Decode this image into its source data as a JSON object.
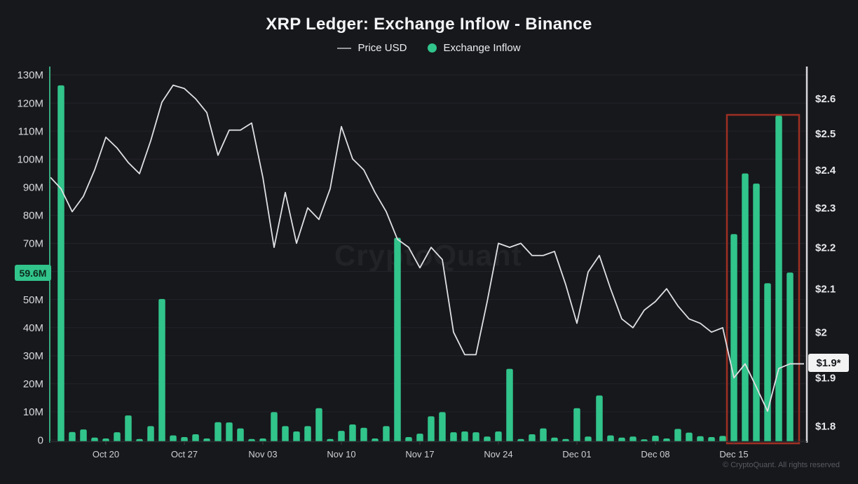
{
  "page": {
    "title": "XRP Ledger: Exchange Inflow - Binance"
  },
  "legend": {
    "price_label": "Price USD",
    "inflow_label": "Exchange Inflow"
  },
  "watermark": "CryptoQuant",
  "footer": {
    "copyright": "© CryptoQuant. All rights reserved"
  },
  "annotations": {
    "current_inflow_label": "59.6M",
    "current_price_label": "$1.9*"
  },
  "colors": {
    "background": "#17181c",
    "bar_green": "#31c48b",
    "price_line": "#dfe0e3",
    "left_axis_line": "#37a97e",
    "right_axis_line": "#d9dadd",
    "grid": "#222329",
    "red_box": "#9e2f23",
    "badge_inflow_text": "#0e2a1e",
    "tick_left": "#d8d9dc",
    "tick_right": "#e8e9ec",
    "tick_x": "#cfd0d3"
  },
  "chart_data": {
    "type": "combo",
    "title": "XRP Ledger: Exchange Inflow - Binance",
    "x": [
      "Oct 16",
      "Oct 17",
      "Oct 18",
      "Oct 19",
      "Oct 20",
      "Oct 21",
      "Oct 22",
      "Oct 23",
      "Oct 24",
      "Oct 25",
      "Oct 26",
      "Oct 27",
      "Oct 28",
      "Oct 29",
      "Oct 30",
      "Oct 31",
      "Nov 01",
      "Nov 02",
      "Nov 03",
      "Nov 04",
      "Nov 05",
      "Nov 06",
      "Nov 07",
      "Nov 08",
      "Nov 09",
      "Nov 10",
      "Nov 11",
      "Nov 12",
      "Nov 13",
      "Nov 14",
      "Nov 15",
      "Nov 16",
      "Nov 17",
      "Nov 18",
      "Nov 19",
      "Nov 20",
      "Nov 21",
      "Nov 22",
      "Nov 23",
      "Nov 24",
      "Nov 25",
      "Nov 26",
      "Nov 27",
      "Nov 28",
      "Nov 29",
      "Nov 30",
      "Dec 01",
      "Dec 02",
      "Dec 03",
      "Dec 04",
      "Dec 05",
      "Dec 06",
      "Dec 07",
      "Dec 08",
      "Dec 09",
      "Dec 10",
      "Dec 11",
      "Dec 12",
      "Dec 13",
      "Dec 14",
      "Dec 15",
      "Dec 16",
      "Dec 17",
      "Dec 18",
      "Dec 19",
      "Dec 20"
    ],
    "series": [
      {
        "name": "Exchange Inflow",
        "type": "bar",
        "axis": "left",
        "unit": "M",
        "values": [
          126.3,
          2.8,
          3.7,
          0.8,
          0.5,
          2.7,
          8.7,
          0.3,
          4.9,
          50.2,
          1.6,
          1.0,
          2.0,
          0.5,
          6.3,
          6.2,
          4.1,
          0.3,
          0.5,
          9.9,
          4.9,
          3.0,
          4.9,
          11.3,
          0.3,
          3.2,
          5.5,
          4.3,
          0.5,
          4.9,
          72.0,
          1.0,
          2.2,
          8.4,
          9.9,
          2.7,
          3.0,
          2.7,
          1.2,
          3.0,
          25.3,
          0.3,
          2.0,
          4.1,
          0.8,
          0.3,
          11.3,
          1.2,
          15.8,
          1.6,
          0.8,
          1.2,
          0.2,
          1.5,
          0.5,
          3.9,
          2.6,
          1.3,
          1.0,
          1.4,
          73.3,
          94.9,
          91.3,
          55.8,
          115.5,
          59.6
        ]
      },
      {
        "name": "Price USD",
        "type": "line",
        "axis": "right",
        "unit": "$",
        "values": [
          2.35,
          2.29,
          2.33,
          2.4,
          2.49,
          2.46,
          2.42,
          2.39,
          2.48,
          2.59,
          2.64,
          2.63,
          2.6,
          2.56,
          2.44,
          2.51,
          2.51,
          2.53,
          2.38,
          2.2,
          2.34,
          2.21,
          2.3,
          2.27,
          2.35,
          2.52,
          2.43,
          2.4,
          2.34,
          2.29,
          2.22,
          2.2,
          2.15,
          2.2,
          2.17,
          2.0,
          1.95,
          1.95,
          2.07,
          2.21,
          2.2,
          2.21,
          2.18,
          2.18,
          2.19,
          2.11,
          2.02,
          2.14,
          2.18,
          2.1,
          2.03,
          2.01,
          2.05,
          2.07,
          2.1,
          2.06,
          2.03,
          2.02,
          2.0,
          2.01,
          1.9,
          1.93,
          1.88,
          1.83,
          1.92,
          1.93
        ]
      }
    ],
    "edge_prices": {
      "start": 2.38,
      "end": 1.93
    },
    "current_values": {
      "inflow": 59.6,
      "price": 1.93
    },
    "x_ticks": [
      {
        "label": "Oct 20",
        "index": 4
      },
      {
        "label": "Oct 27",
        "index": 11
      },
      {
        "label": "Nov 03",
        "index": 18
      },
      {
        "label": "Nov 10",
        "index": 25
      },
      {
        "label": "Nov 17",
        "index": 32
      },
      {
        "label": "Nov 24",
        "index": 39
      },
      {
        "label": "Dec 01",
        "index": 46
      },
      {
        "label": "Dec 08",
        "index": 53
      },
      {
        "label": "Dec 15",
        "index": 60
      }
    ],
    "left_axis": {
      "min": 0,
      "max": 130,
      "grid_step": 10,
      "ticks": [
        {
          "label": "130M",
          "value": 130
        },
        {
          "label": "120M",
          "value": 120
        },
        {
          "label": "110M",
          "value": 110
        },
        {
          "label": "100M",
          "value": 100
        },
        {
          "label": "90M",
          "value": 90
        },
        {
          "label": "80M",
          "value": 80
        },
        {
          "label": "70M",
          "value": 70
        },
        {
          "label": "50M",
          "value": 50
        },
        {
          "label": "40M",
          "value": 40
        },
        {
          "label": "30M",
          "value": 30
        },
        {
          "label": "20M",
          "value": 20
        },
        {
          "label": "10M",
          "value": 10
        },
        {
          "label": "0",
          "value": 0
        }
      ]
    },
    "right_axis": {
      "scale": "log",
      "ticks": [
        {
          "label": "$2.6",
          "value": 2.6
        },
        {
          "label": "$2.5",
          "value": 2.5
        },
        {
          "label": "$2.4",
          "value": 2.4
        },
        {
          "label": "$2.3",
          "value": 2.3
        },
        {
          "label": "$2.2",
          "value": 2.2
        },
        {
          "label": "$2.1",
          "value": 2.1
        },
        {
          "label": "$2",
          "value": 2.0
        },
        {
          "label": "$1.9",
          "value": 1.9
        },
        {
          "label": "$1.8",
          "value": 1.8
        }
      ]
    },
    "highlight": {
      "from_index": 60,
      "to_index": 65
    },
    "legend_position": "top",
    "grid": "horizontal-only"
  }
}
